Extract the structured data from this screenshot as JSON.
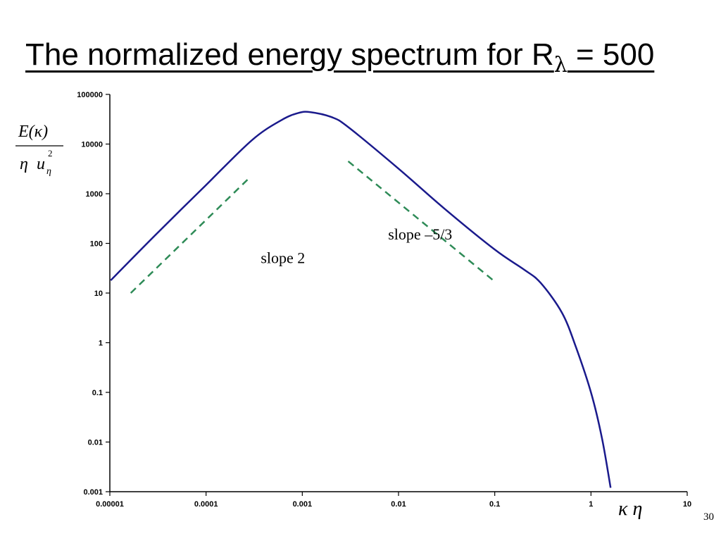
{
  "slide": {
    "title_main": "The normalized energy spectrum for R",
    "title_sub": "λ",
    "title_tail": " = 500",
    "page_number": "30"
  },
  "chart_data": {
    "type": "line",
    "title": "The normalized energy spectrum for Rλ = 500",
    "xlabel": "κ η",
    "ylabel": "E(κ) / (η u_η²)",
    "ylabel_parts": {
      "num": "E(κ)",
      "den_eta": "η",
      "den_u": "u",
      "den_sub": "η",
      "den_sup": "2"
    },
    "xscale": "log",
    "yscale": "log",
    "xlim": [
      1e-05,
      10
    ],
    "ylim": [
      0.001,
      100000
    ],
    "x_ticks": [
      "0.00001",
      "0.0001",
      "0.001",
      "0.01",
      "0.1",
      "1",
      "10"
    ],
    "y_ticks": [
      "0.001",
      "0.01",
      "0.1",
      "1",
      "10",
      "100",
      "1000",
      "10000",
      "100000"
    ],
    "grid": false,
    "series": [
      {
        "color": "#1a1a8c",
        "points": [
          [
            1.02e-05,
            18
          ],
          [
            3e-05,
            150
          ],
          [
            0.0001,
            1500
          ],
          [
            0.0003,
            12000
          ],
          [
            0.0006,
            30000
          ],
          [
            0.0009,
            42000
          ],
          [
            0.0012,
            44000
          ],
          [
            0.002,
            35000
          ],
          [
            0.003,
            22000
          ],
          [
            0.01,
            3200
          ],
          [
            0.03,
            500
          ],
          [
            0.1,
            75
          ],
          [
            0.2,
            30
          ],
          [
            0.3,
            16
          ],
          [
            0.5,
            4
          ],
          [
            0.7,
            0.8
          ],
          [
            1,
            0.1
          ],
          [
            1.3,
            0.012
          ],
          [
            1.6,
            0.0012
          ]
        ]
      }
    ],
    "reference_lines": [
      {
        "label": "slope 2",
        "color": "#2e8b57",
        "style": "dashed",
        "from": [
          1.65e-05,
          10
        ],
        "to": [
          0.00029,
          2200
        ]
      },
      {
        "label": "slope –5/3",
        "color": "#2e8b57",
        "style": "dashed",
        "from": [
          0.003,
          4500
        ],
        "to": [
          0.1,
          17
        ]
      }
    ],
    "annotations": [
      {
        "text": "slope 2",
        "x": 0.00037,
        "y": 40
      },
      {
        "text": "slope –5/3",
        "x": 0.0078,
        "y": 120
      }
    ]
  }
}
